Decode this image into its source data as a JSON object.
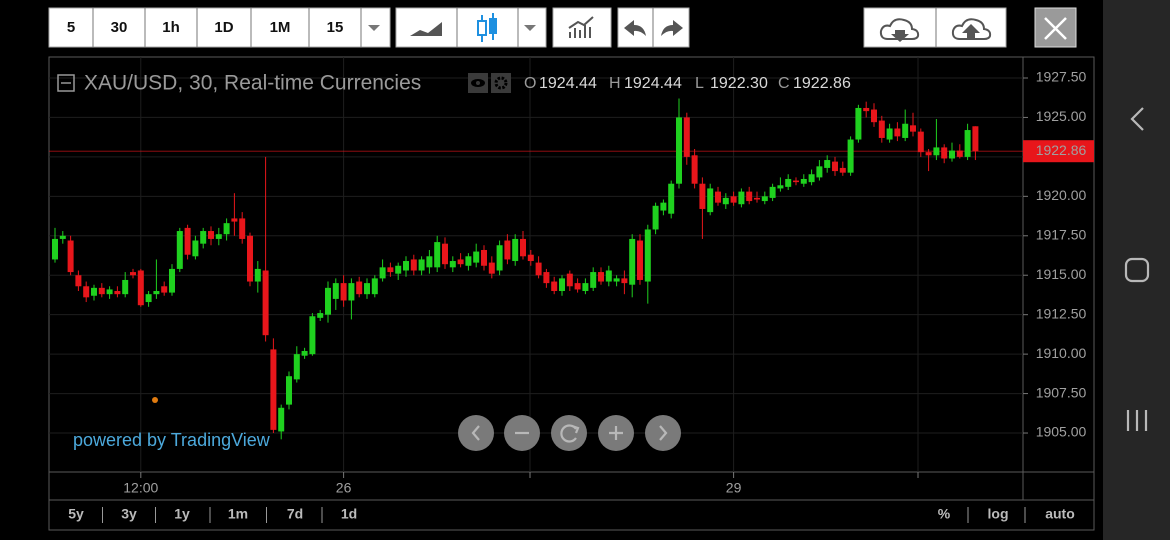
{
  "toolbar": {
    "intervals": [
      "5",
      "30",
      "1h",
      "1D",
      "1M",
      "15"
    ]
  },
  "ranges": [
    "5y",
    "3y",
    "1y",
    "1m",
    "7d",
    "1d"
  ],
  "scale_options": [
    "%",
    "log",
    "auto"
  ],
  "watermark": "powered by TradingView",
  "chart_data": {
    "type": "candlestick",
    "title": "XAU/USD, 30, Real-time Currencies",
    "ohlc_names": [
      "O",
      "H",
      "L",
      "C"
    ],
    "value_labels": {
      "open": "1924.44",
      "high": "1924.44",
      "low": "1922.30",
      "close": "1922.86"
    },
    "up_color": "#1fd11f",
    "down_color": "#e8161b",
    "last_price_color": "#e8161b",
    "grid": true,
    "ylim": [
      1902.53,
      1928.83
    ],
    "yticks": [
      {
        "value": 1905,
        "label": "1905.00"
      },
      {
        "value": 1907.5,
        "label": "1907.50"
      },
      {
        "value": 1910,
        "label": "1910.00"
      },
      {
        "value": 1912.5,
        "label": "1912.50"
      },
      {
        "value": 1915,
        "label": "1915.00"
      },
      {
        "value": 1917.5,
        "label": "1917.50"
      },
      {
        "value": 1920,
        "label": "1920.00"
      },
      {
        "value": 1922.5,
        "label": "1922.50"
      },
      {
        "value": 1925,
        "label": "1925.00"
      },
      {
        "value": 1927.5,
        "label": "1927.50"
      }
    ],
    "categories": [
      null,
      null,
      null,
      null,
      null,
      null,
      null,
      null,
      null,
      null,
      null,
      "12:00",
      null,
      null,
      null,
      null,
      null,
      null,
      null,
      null,
      null,
      null,
      null,
      null,
      null,
      null,
      null,
      null,
      null,
      null,
      null,
      null,
      null,
      null,
      null,
      null,
      null,
      "26",
      null,
      null,
      null,
      null,
      null,
      null,
      null,
      null,
      null,
      null,
      null,
      null,
      null,
      null,
      null,
      null,
      null,
      null,
      null,
      null,
      null,
      null,
      null,
      null,
      null,
      null,
      null,
      null,
      null,
      null,
      null,
      null,
      null,
      null,
      null,
      null,
      null,
      null,
      null,
      null,
      null,
      null,
      null,
      null,
      null,
      null,
      null,
      null,
      null,
      "29",
      null,
      null,
      null,
      null,
      null,
      null,
      null,
      null,
      null,
      null,
      null,
      null,
      null,
      null,
      null,
      null,
      null,
      null,
      null,
      null,
      null,
      null,
      null,
      null,
      null,
      null,
      null,
      null,
      null,
      null,
      null
    ],
    "open": [
      1916.0,
      1917.3,
      1917.2,
      1915.0,
      1914.3,
      1913.7,
      1914.2,
      1913.8,
      1914.0,
      1913.8,
      1915.2,
      1915.3,
      1913.3,
      1913.8,
      1914.3,
      1913.9,
      1915.4,
      1918.0,
      1916.2,
      1917.0,
      1917.8,
      1917.3,
      1917.6,
      1918.6,
      1918.6,
      1917.5,
      1914.6,
      1915.3,
      1910.3,
      1905.1,
      1906.8,
      1908.4,
      1909.9,
      1910.0,
      1912.3,
      1912.5,
      1913.5,
      1914.5,
      1913.4,
      1914.6,
      1913.8,
      1913.8,
      1914.8,
      1915.5,
      1915.1,
      1915.3,
      1916.0,
      1915.3,
      1915.5,
      1915.5,
      1917.0,
      1915.5,
      1916.0,
      1915.6,
      1915.8,
      1916.6,
      1915.8,
      1915.3,
      1917.2,
      1915.9,
      1917.3,
      1916.3,
      1915.8,
      1915.2,
      1914.6,
      1914.0,
      1915.1,
      1914.5,
      1914.0,
      1914.2,
      1915.2,
      1914.6,
      1914.6,
      1914.8,
      1914.4,
      1917.2,
      1914.6,
      1917.9,
      1919.1,
      1918.9,
      1920.8,
      1925.0,
      1922.6,
      1920.8,
      1919.0,
      1920.3,
      1919.5,
      1920.0,
      1919.5,
      1920.3,
      1919.9,
      1919.7,
      1919.9,
      1920.5,
      1920.6,
      1921.0,
      1920.8,
      1920.9,
      1921.2,
      1921.8,
      1922.2,
      1921.8,
      1921.5,
      1923.6,
      1925.6,
      1925.5,
      1924.8,
      1923.6,
      1924.3,
      1923.7,
      1924.5,
      1924.1,
      1922.8,
      1922.6,
      1923.1,
      1922.4,
      1922.9,
      1922.5,
      1924.44
    ],
    "high": [
      1918.0,
      1917.8,
      1917.5,
      1915.3,
      1914.6,
      1914.4,
      1914.5,
      1914.3,
      1914.3,
      1915.2,
      1915.4,
      1915.4,
      1914.0,
      1916.0,
      1914.6,
      1915.7,
      1918.0,
      1918.2,
      1917.5,
      1918.0,
      1918.1,
      1918.0,
      1918.6,
      1920.2,
      1919.0,
      1917.7,
      1915.9,
      1922.5,
      1911.0,
      1906.8,
      1908.9,
      1910.5,
      1910.4,
      1912.6,
      1912.8,
      1914.6,
      1914.8,
      1915.0,
      1914.8,
      1914.9,
      1914.8,
      1915.0,
      1916.0,
      1915.8,
      1915.8,
      1916.2,
      1916.3,
      1916.2,
      1916.6,
      1917.5,
      1917.4,
      1916.2,
      1916.4,
      1916.4,
      1917.0,
      1916.9,
      1916.2,
      1917.2,
      1917.6,
      1917.6,
      1917.8,
      1916.6,
      1916.2,
      1915.4,
      1914.9,
      1915.0,
      1915.3,
      1914.8,
      1914.8,
      1915.5,
      1915.5,
      1915.6,
      1915.0,
      1915.3,
      1917.6,
      1917.6,
      1918.2,
      1919.6,
      1919.8,
      1921.0,
      1926.2,
      1925.3,
      1923.0,
      1921.2,
      1920.8,
      1920.6,
      1920.2,
      1920.3,
      1920.5,
      1920.6,
      1920.3,
      1920.3,
      1920.8,
      1921.2,
      1921.4,
      1921.2,
      1921.4,
      1921.7,
      1922.3,
      1922.6,
      1922.5,
      1922.2,
      1923.8,
      1925.8,
      1926.0,
      1925.9,
      1925.1,
      1924.6,
      1924.7,
      1925.5,
      1925.3,
      1924.3,
      1923.0,
      1924.9,
      1923.3,
      1923.4,
      1923.3,
      1924.6,
      1924.44
    ],
    "low": [
      1915.8,
      1917.0,
      1915.0,
      1914.0,
      1913.3,
      1913.4,
      1913.6,
      1913.5,
      1913.6,
      1913.6,
      1914.8,
      1913.0,
      1913.0,
      1913.5,
      1913.7,
      1913.7,
      1915.2,
      1916.0,
      1916.0,
      1916.7,
      1916.9,
      1916.9,
      1917.2,
      1917.5,
      1917.0,
      1914.3,
      1913.9,
      1910.8,
      1905.0,
      1904.6,
      1906.5,
      1908.2,
      1909.7,
      1909.9,
      1912.1,
      1912.0,
      1912.8,
      1913.0,
      1912.2,
      1913.6,
      1913.5,
      1913.6,
      1914.6,
      1914.9,
      1914.7,
      1914.9,
      1915.0,
      1915.0,
      1915.1,
      1915.2,
      1915.4,
      1915.2,
      1915.5,
      1915.3,
      1915.5,
      1915.3,
      1914.8,
      1915.0,
      1915.7,
      1915.6,
      1916.0,
      1915.6,
      1914.8,
      1914.2,
      1913.8,
      1913.7,
      1914.0,
      1913.9,
      1913.8,
      1914.0,
      1914.4,
      1914.3,
      1914.3,
      1913.8,
      1913.6,
      1914.4,
      1913.2,
      1917.6,
      1918.8,
      1918.6,
      1920.5,
      1922.0,
      1920.5,
      1917.3,
      1918.8,
      1919.4,
      1919.2,
      1919.4,
      1919.3,
      1919.5,
      1919.6,
      1919.5,
      1919.7,
      1920.3,
      1920.4,
      1920.7,
      1920.6,
      1920.7,
      1921.0,
      1921.5,
      1921.3,
      1921.3,
      1921.3,
      1923.4,
      1925.0,
      1924.4,
      1923.4,
      1923.4,
      1923.5,
      1923.5,
      1923.8,
      1922.5,
      1921.6,
      1922.3,
      1922.1,
      1922.2,
      1922.4,
      1922.3,
      1922.3
    ],
    "close": [
      1917.3,
      1917.5,
      1915.2,
      1914.3,
      1913.6,
      1914.2,
      1913.8,
      1914.1,
      1913.8,
      1914.7,
      1915.0,
      1913.1,
      1913.8,
      1914.0,
      1913.9,
      1915.4,
      1917.8,
      1916.3,
      1917.2,
      1917.8,
      1917.3,
      1917.6,
      1918.3,
      1918.4,
      1917.3,
      1914.6,
      1915.4,
      1911.2,
      1905.2,
      1906.6,
      1908.6,
      1910.0,
      1910.2,
      1912.4,
      1912.6,
      1914.2,
      1914.5,
      1913.4,
      1914.5,
      1913.8,
      1914.5,
      1914.8,
      1915.5,
      1915.2,
      1915.6,
      1915.9,
      1915.3,
      1916.0,
      1916.2,
      1917.1,
      1915.7,
      1915.9,
      1915.7,
      1916.2,
      1916.5,
      1915.6,
      1915.1,
      1916.9,
      1916.0,
      1917.3,
      1916.2,
      1915.9,
      1915.0,
      1914.5,
      1914.0,
      1914.8,
      1914.3,
      1914.1,
      1914.5,
      1915.2,
      1914.6,
      1915.3,
      1914.8,
      1914.5,
      1917.3,
      1914.7,
      1917.9,
      1919.4,
      1919.6,
      1920.8,
      1925.0,
      1922.5,
      1920.8,
      1919.2,
      1920.5,
      1919.6,
      1919.9,
      1919.6,
      1920.3,
      1919.7,
      1919.8,
      1920.0,
      1920.6,
      1920.7,
      1921.1,
      1920.9,
      1921.1,
      1921.4,
      1921.9,
      1922.3,
      1921.6,
      1921.5,
      1923.6,
      1925.6,
      1925.4,
      1924.7,
      1923.7,
      1924.3,
      1923.8,
      1924.6,
      1924.1,
      1922.8,
      1922.6,
      1923.1,
      1922.4,
      1922.9,
      1922.5,
      1924.2,
      1922.86
    ]
  }
}
